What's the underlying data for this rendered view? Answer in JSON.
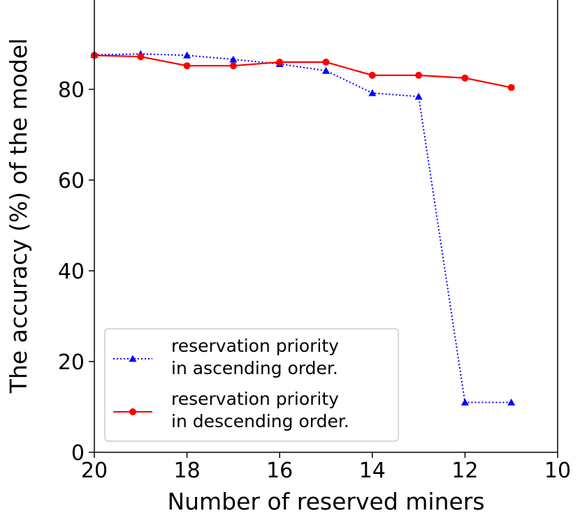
{
  "chart_data": {
    "type": "line",
    "xlabel": "Number of reserved miners",
    "ylabel": "The accuracy (%) of the model",
    "xlim": [
      20,
      10
    ],
    "ylim": [
      0,
      100
    ],
    "x_ticks": [
      20,
      18,
      16,
      14,
      12,
      10
    ],
    "y_ticks": [
      0,
      20,
      40,
      60,
      80
    ],
    "grid": false,
    "legend_position": "lower-left",
    "x": [
      20,
      19,
      18,
      17,
      16,
      15,
      14,
      13,
      12,
      11
    ],
    "series": [
      {
        "name": "reservation priority\n in ascending order.",
        "color": "#0000ff",
        "line_style": "dotted",
        "marker": "triangle",
        "values": [
          87.6,
          87.8,
          87.5,
          86.6,
          85.6,
          84.1,
          79.2,
          78.4,
          11.0,
          11.0
        ]
      },
      {
        "name": "reservation priority\n in descending order.",
        "color": "#ff0000",
        "line_style": "solid",
        "marker": "circle",
        "values": [
          87.5,
          87.2,
          85.2,
          85.2,
          86.0,
          86.0,
          83.1,
          83.1,
          82.5,
          80.4
        ]
      }
    ]
  }
}
